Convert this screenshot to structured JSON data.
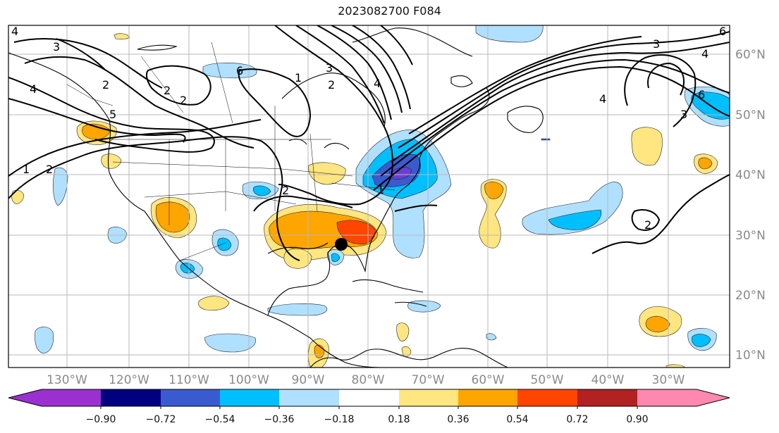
{
  "title": "2023082700 F084",
  "lon_labels": [
    "130°W",
    "120°W",
    "110°W",
    "100°W",
    "90°W",
    "80°W",
    "70°W",
    "60°W",
    "50°W",
    "40°W",
    "30°W"
  ],
  "lat_labels": [
    "60°N",
    "50°N",
    "40°N",
    "30°N",
    "20°N",
    "10°N"
  ],
  "colorbar": {
    "ticks": [
      "−0.90",
      "−0.72",
      "−0.54",
      "−0.36",
      "−0.18",
      "0.18",
      "0.36",
      "0.54",
      "0.72",
      "0.90"
    ],
    "colors": [
      "#9b30d0",
      "#000080",
      "#3a5bd0",
      "#00bfff",
      "#b0e0ff",
      "#ffffff",
      "#ffe680",
      "#ffa500",
      "#ff4500",
      "#b22222",
      "#ff88b0"
    ]
  },
  "contour_labels": [
    "1",
    "2",
    "3",
    "4",
    "5",
    "6",
    "2",
    "4",
    "6",
    "4",
    "2",
    "3",
    "2",
    "2",
    "1",
    "2",
    "1",
    "3",
    "4",
    "6",
    "3",
    "4",
    "2"
  ],
  "marker": "storm-center-dot"
}
